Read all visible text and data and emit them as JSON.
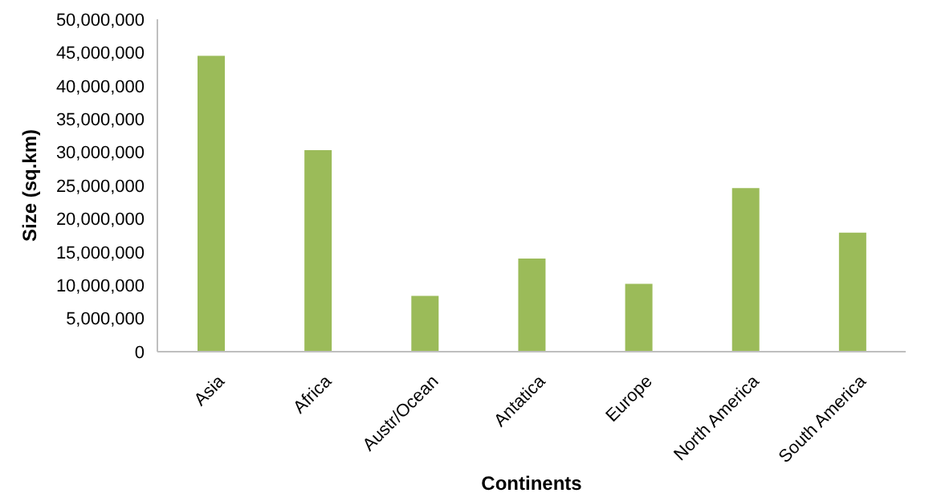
{
  "chart_data": {
    "type": "bar",
    "xlabel": "Continents",
    "ylabel": "Size (sq.km)",
    "categories": [
      "Asia",
      "Africa",
      "Austr/Ocean",
      "Antatica",
      "Europe",
      "North America",
      "South America"
    ],
    "values": [
      44500000,
      30300000,
      8400000,
      14000000,
      10200000,
      24600000,
      17900000
    ],
    "color": "#9bbb59",
    "ylim": [
      0,
      50000000
    ],
    "yticks": [
      0,
      {
        "value": 5000000,
        "label": "5,000,000"
      },
      {
        "value": 10000000,
        "label": "10,000,000"
      },
      {
        "value": 15000000,
        "label": "15,000,000"
      },
      {
        "value": 20000000,
        "label": "20,000,000"
      },
      {
        "value": 25000000,
        "label": "25,000,000"
      },
      {
        "value": 30000000,
        "label": "30,000,000"
      },
      {
        "value": 35000000,
        "label": "35,000,000"
      },
      {
        "value": 40000000,
        "label": "40,000,000"
      },
      {
        "value": 45000000,
        "label": "45,000,000"
      },
      {
        "value": 50000000,
        "label": "50,000,000"
      }
    ],
    "grid": false,
    "legend": false
  }
}
